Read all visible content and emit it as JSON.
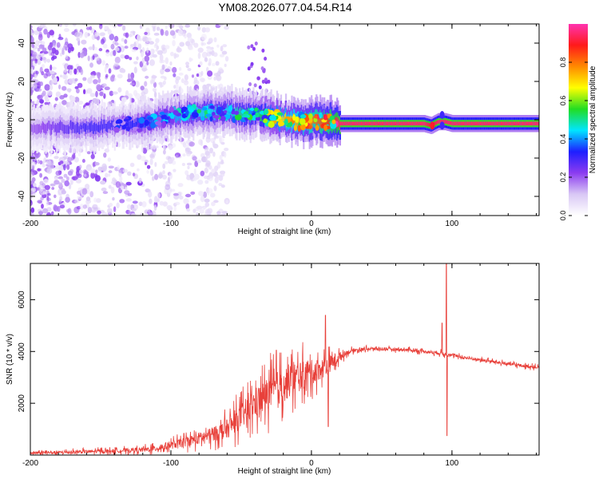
{
  "title": "YM08.2026.077.04.54.R14",
  "colors": {
    "signal": "#e8403a",
    "background": "#ffffff",
    "axis": "#000000",
    "colormap": [
      "#ffffff",
      "#d9c8f5",
      "#8c3cf0",
      "#1e1eff",
      "#00e5ff",
      "#22dd22",
      "#ffff00",
      "#ff8a00",
      "#ff1a1a",
      "#ff33b0"
    ]
  },
  "chart_data": [
    {
      "type": "heatmap",
      "name": "spectrogram",
      "xlabel": "Height of straight line (km)",
      "ylabel": "Frequency (Hz)",
      "xlim": [
        -200,
        162
      ],
      "ylim": [
        -50,
        50
      ],
      "xticks": [
        -200,
        -100,
        0,
        100
      ],
      "xtick_labels": [
        "-200",
        "-100",
        "0",
        "100"
      ],
      "yticks": [
        -40,
        -20,
        0,
        20,
        40
      ],
      "ytick_labels": [
        "-40",
        "-20",
        "0",
        "20",
        "40"
      ],
      "ridge": {
        "x": [
          -200,
          -160,
          -140,
          -120,
          -100,
          -80,
          -60,
          -50,
          -40,
          -30,
          -20,
          -10,
          0,
          10,
          20,
          40,
          60,
          80,
          85,
          90,
          95,
          100,
          120,
          140,
          162
        ],
        "center_hz": [
          -4,
          -4,
          -3,
          -2,
          2,
          4,
          4,
          3,
          3,
          1,
          0,
          -1,
          -1,
          -1,
          -2,
          -2,
          -2,
          -2,
          -3,
          -1,
          -1,
          -2,
          -2,
          -2,
          -2
        ],
        "peak_amplitude": [
          0.2,
          0.3,
          0.3,
          0.35,
          0.4,
          0.45,
          0.45,
          0.5,
          0.5,
          0.6,
          0.7,
          0.75,
          0.8,
          0.85,
          0.95,
          0.95,
          0.95,
          0.95,
          0.9,
          0.95,
          0.95,
          0.95,
          0.95,
          0.95,
          0.95
        ]
      },
      "noise_region_x": [
        -200,
        -60
      ],
      "colorbar": {
        "label": "Normalized spectral amplitude",
        "range": [
          0,
          1
        ],
        "ticks": [
          0.0,
          0.2,
          0.4,
          0.6,
          0.8
        ],
        "tick_labels": [
          "0.0",
          "0.2",
          "0.4",
          "0.6",
          "0.8"
        ]
      }
    },
    {
      "type": "line",
      "name": "snr",
      "xlabel": "Height of straight line (km)",
      "ylabel": "SNR (10 * v/v)",
      "xlim": [
        -200,
        162
      ],
      "ylim": [
        0,
        7400
      ],
      "xticks": [
        -200,
        -100,
        0,
        100
      ],
      "xtick_labels": [
        "-200",
        "-100",
        "0",
        "100"
      ],
      "yticks": [
        2000,
        4000,
        6000
      ],
      "ytick_labels": [
        "2000",
        "4000",
        "6000"
      ],
      "series": [
        {
          "name": "SNR",
          "x": [
            -200,
            -180,
            -160,
            -140,
            -120,
            -110,
            -100,
            -90,
            -80,
            -70,
            -60,
            -50,
            -40,
            -30,
            -20,
            -15,
            -10,
            -5,
            0,
            5,
            10,
            15,
            20,
            25,
            30,
            40,
            50,
            60,
            70,
            80,
            90,
            95,
            100,
            110,
            120,
            130,
            140,
            150,
            162
          ],
          "values": [
            80,
            100,
            130,
            160,
            200,
            260,
            380,
            500,
            650,
            800,
            1000,
            1500,
            2000,
            2400,
            2700,
            2900,
            3000,
            3100,
            3200,
            3300,
            3400,
            3600,
            3800,
            3950,
            4050,
            4100,
            4100,
            4080,
            4060,
            4000,
            3950,
            3900,
            3850,
            3750,
            3680,
            3600,
            3520,
            3450,
            3380
          ],
          "noise_amplitude": [
            100,
            100,
            110,
            120,
            150,
            200,
            250,
            300,
            380,
            450,
            600,
            800,
            1000,
            1100,
            1100,
            1100,
            1000,
            900,
            800,
            700,
            600,
            500,
            300,
            150,
            120,
            100,
            100,
            100,
            100,
            100,
            120,
            120,
            100,
            100,
            100,
            100,
            100,
            100,
            100
          ],
          "spikes": [
            {
              "x": 10,
              "value": 5400
            },
            {
              "x": 12,
              "value": 1100
            },
            {
              "x": -25,
              "value": 4050
            },
            {
              "x": 93,
              "value": 5100
            },
            {
              "x": 96,
              "value": 7400
            },
            {
              "x": 96.5,
              "value": 750
            }
          ]
        }
      ]
    }
  ]
}
